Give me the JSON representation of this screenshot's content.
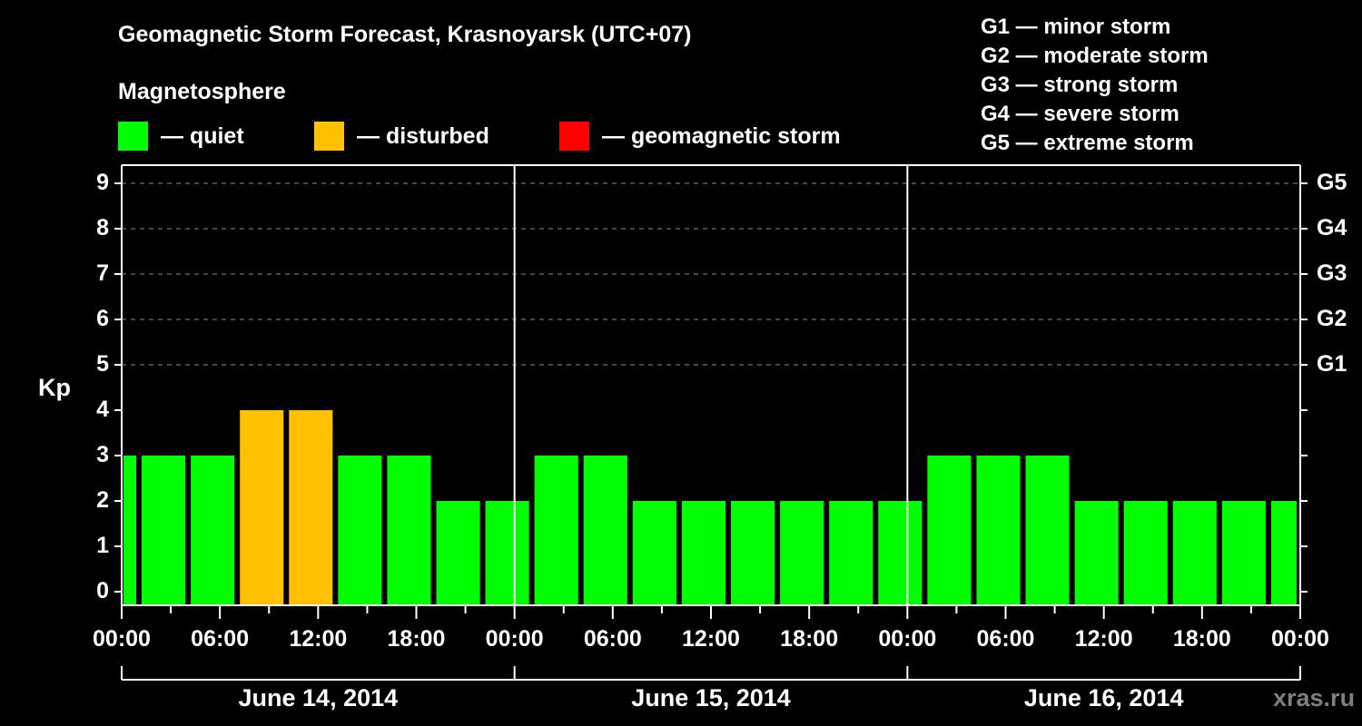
{
  "header": {
    "title": "Geomagnetic Storm Forecast, Krasnoyarsk (UTC+07)",
    "subtitle": "Magnetosphere"
  },
  "legend": [
    {
      "label": "— quiet",
      "color": "#00ff00"
    },
    {
      "label": "— disturbed",
      "color": "#ffc000"
    },
    {
      "label": "— geomagnetic storm",
      "color": "#ff0000"
    }
  ],
  "storm_scale": [
    {
      "label": "G1 — minor storm"
    },
    {
      "label": "G2 — moderate storm"
    },
    {
      "label": "G3 — strong storm"
    },
    {
      "label": "G4 — severe storm"
    },
    {
      "label": "G5 — extreme storm"
    }
  ],
  "watermark": "xras.ru",
  "chart_data": {
    "type": "bar",
    "title": "Geomagnetic Storm Forecast, Krasnoyarsk (UTC+07)",
    "xlabel": "",
    "ylabel": "Kp",
    "ylim": [
      0,
      9
    ],
    "grid": "horizontal dashed at Kp 5-9",
    "y_ticks": [
      "0",
      "1",
      "2",
      "3",
      "4",
      "5",
      "6",
      "7",
      "8",
      "9"
    ],
    "right_axis_ticks": [
      {
        "kp": 5,
        "label": "G1"
      },
      {
        "kp": 6,
        "label": "G2"
      },
      {
        "kp": 7,
        "label": "G3"
      },
      {
        "kp": 8,
        "label": "G4"
      },
      {
        "kp": 9,
        "label": "G5"
      }
    ],
    "x_tick_labels": [
      "00:00",
      "06:00",
      "12:00",
      "18:00",
      "00:00",
      "06:00",
      "12:00",
      "18:00",
      "00:00",
      "06:00",
      "12:00",
      "18:00",
      "00:00"
    ],
    "days": [
      "June 14, 2014",
      "June 15, 2014",
      "June 16, 2014"
    ],
    "interval_hours": 3,
    "first_interval_start_local_hour": -2,
    "categories": [
      "Jun14 -02:00",
      "Jun14 01:00",
      "Jun14 04:00",
      "Jun14 07:00",
      "Jun14 10:00",
      "Jun14 13:00",
      "Jun14 16:00",
      "Jun14 19:00",
      "Jun14 22:00",
      "Jun15 01:00",
      "Jun15 04:00",
      "Jun15 07:00",
      "Jun15 10:00",
      "Jun15 13:00",
      "Jun15 16:00",
      "Jun15 19:00",
      "Jun15 22:00",
      "Jun16 01:00",
      "Jun16 04:00",
      "Jun16 07:00",
      "Jun16 10:00",
      "Jun16 13:00",
      "Jun16 16:00",
      "Jun16 19:00",
      "Jun16 22:00"
    ],
    "values": [
      3,
      3,
      3,
      4,
      4,
      3,
      3,
      2,
      2,
      3,
      3,
      2,
      2,
      2,
      2,
      2,
      2,
      3,
      3,
      3,
      2,
      2,
      2,
      2,
      2
    ],
    "status": [
      "quiet",
      "quiet",
      "quiet",
      "disturbed",
      "disturbed",
      "quiet",
      "quiet",
      "quiet",
      "quiet",
      "quiet",
      "quiet",
      "quiet",
      "quiet",
      "quiet",
      "quiet",
      "quiet",
      "quiet",
      "quiet",
      "quiet",
      "quiet",
      "quiet",
      "quiet",
      "quiet",
      "quiet",
      "quiet"
    ],
    "status_colors": {
      "quiet": "#00ff00",
      "disturbed": "#ffc000",
      "storm": "#ff0000"
    }
  }
}
